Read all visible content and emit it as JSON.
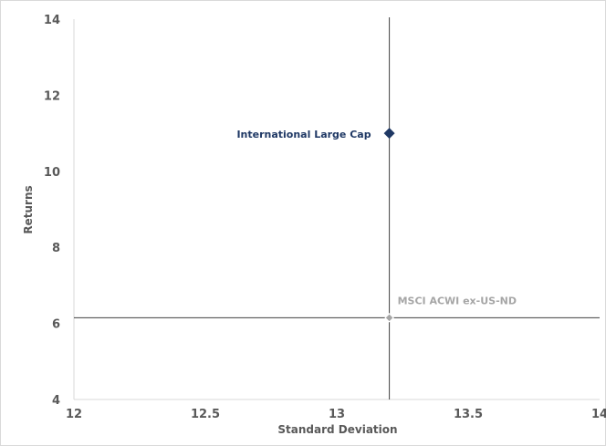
{
  "chart_data": {
    "type": "scatter",
    "xlabel": "Standard Deviation",
    "ylabel": "Returns",
    "xlim": [
      12,
      14
    ],
    "ylim": [
      4,
      14
    ],
    "x_ticks": [
      "12",
      "12.5",
      "13",
      "13.5",
      "14"
    ],
    "y_ticks": [
      "4",
      "6",
      "8",
      "10",
      "12",
      "14"
    ],
    "grid": false,
    "points": [
      {
        "label": "International Large Cap",
        "x": 13.2,
        "y": 11.0,
        "color": "#1f3864",
        "marker": "diamond"
      },
      {
        "label": "MSCI ACWI ex-US-ND",
        "x": 13.2,
        "y": 6.15,
        "color": "#a6a6a6",
        "marker": "diamond"
      }
    ],
    "crosshair": {
      "x": 13.2,
      "y": 6.15,
      "color": "#404040"
    }
  }
}
